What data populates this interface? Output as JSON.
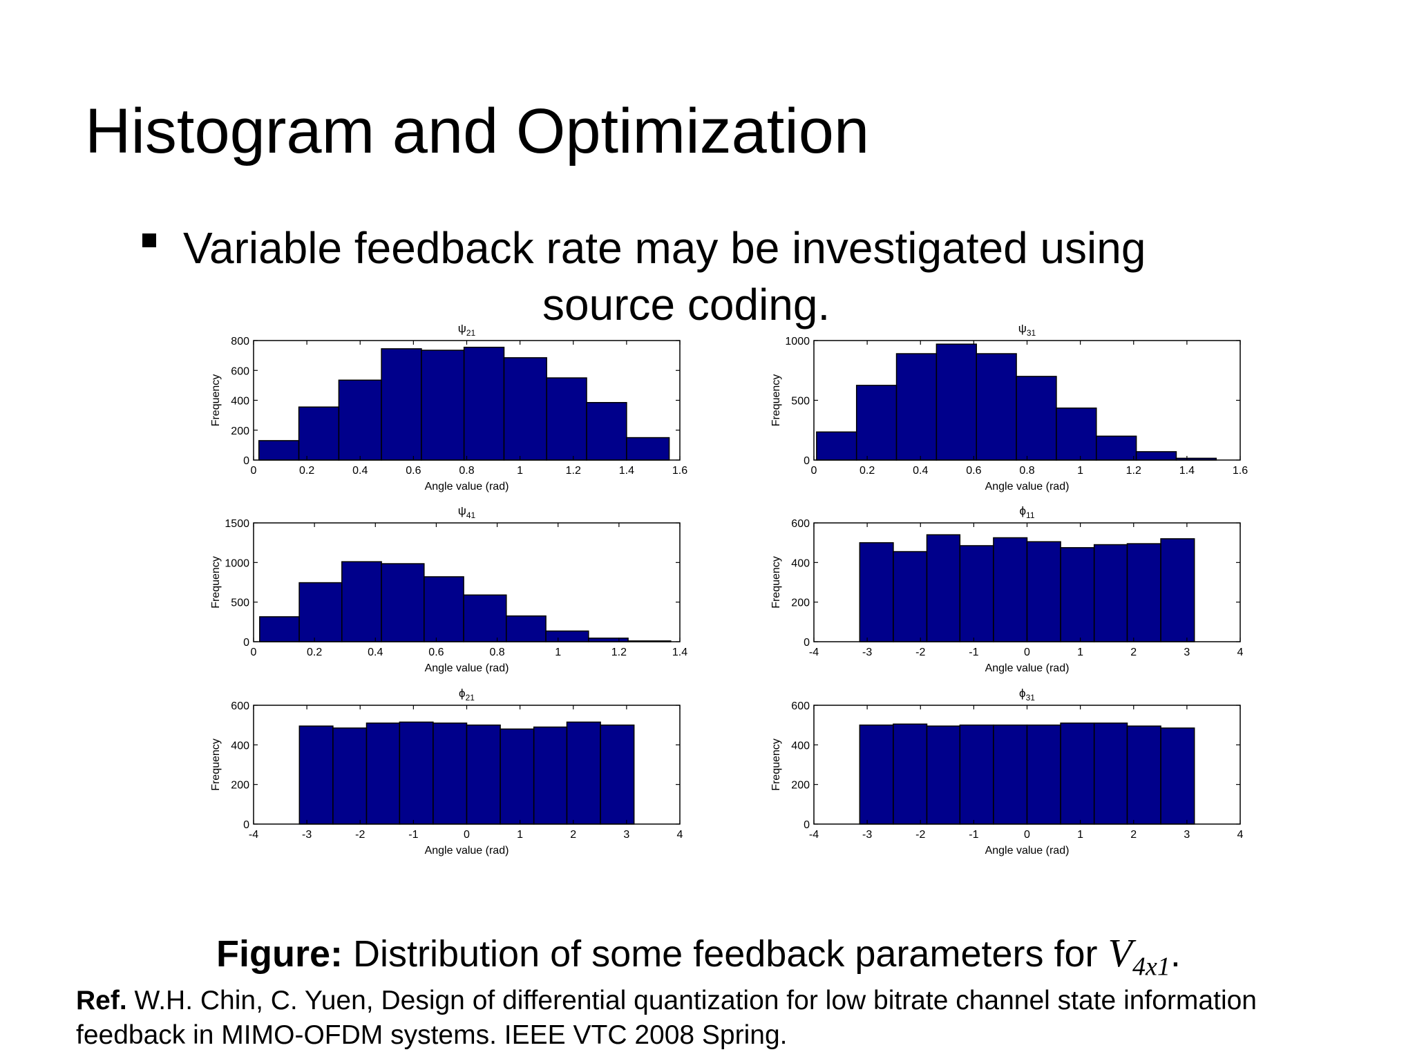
{
  "slide": {
    "title": "Histogram and Optimization",
    "bullet_line1": "Variable feedback rate may be investigated using",
    "bullet_line2": "source coding.",
    "caption_bold": "Figure:",
    "caption_text": "Distribution of some feedback parameters for",
    "caption_math_base": "V",
    "caption_math_sub": "4x1",
    "caption_end": ".",
    "ref_bold": "Ref.",
    "ref_text": "W.H. Chin, C. Yuen, Design of differential quantization for low bitrate channel state information feedback in MIMO-OFDM systems. IEEE VTC 2008 Spring."
  },
  "colors": {
    "bar_fill": "#00008B",
    "bar_edge": "#000000",
    "axis": "#000000"
  },
  "chart_data": [
    {
      "type": "bar",
      "title_sym": "ψ",
      "title_sub": "21",
      "xlabel": "Angle value (rad)",
      "ylabel": "Frequency",
      "xlim": [
        0,
        1.6
      ],
      "ylim": [
        0,
        800
      ],
      "xticks": [
        0,
        0.2,
        0.4,
        0.6,
        0.8,
        1,
        1.2,
        1.4,
        1.6
      ],
      "yticks": [
        0,
        200,
        400,
        600,
        800
      ],
      "bin_edges": [
        0.02,
        0.17,
        0.32,
        0.48,
        0.63,
        0.79,
        0.94,
        1.1,
        1.25,
        1.4,
        1.56
      ],
      "values": [
        130,
        355,
        535,
        745,
        735,
        755,
        685,
        550,
        385,
        150
      ]
    },
    {
      "type": "bar",
      "title_sym": "ψ",
      "title_sub": "31",
      "xlabel": "Angle value (rad)",
      "ylabel": "Frequency",
      "xlim": [
        0,
        1.6
      ],
      "ylim": [
        0,
        1000
      ],
      "xticks": [
        0,
        0.2,
        0.4,
        0.6,
        0.8,
        1,
        1.2,
        1.4,
        1.6
      ],
      "yticks": [
        0,
        500,
        1000
      ],
      "bin_edges": [
        0.01,
        0.16,
        0.31,
        0.46,
        0.61,
        0.76,
        0.91,
        1.06,
        1.21,
        1.36,
        1.51
      ],
      "values": [
        235,
        625,
        890,
        970,
        890,
        700,
        435,
        200,
        70,
        15
      ]
    },
    {
      "type": "bar",
      "title_sym": "ψ",
      "title_sub": "41",
      "xlabel": "Angle value (rad)",
      "ylabel": "Frequency",
      "xlim": [
        0,
        1.4
      ],
      "ylim": [
        0,
        1500
      ],
      "xticks": [
        0,
        0.2,
        0.4,
        0.6,
        0.8,
        1,
        1.2,
        1.4
      ],
      "yticks": [
        0,
        500,
        1000,
        1500
      ],
      "bin_edges": [
        0.02,
        0.15,
        0.29,
        0.42,
        0.56,
        0.69,
        0.83,
        0.96,
        1.1,
        1.23,
        1.37
      ],
      "values": [
        315,
        745,
        1010,
        985,
        820,
        590,
        325,
        135,
        45,
        10
      ]
    },
    {
      "type": "bar",
      "title_sym": "ϕ",
      "title_sub": "11",
      "xlabel": "Angle value (rad)",
      "ylabel": "Frequency",
      "xlim": [
        -4,
        4
      ],
      "ylim": [
        0,
        600
      ],
      "xticks": [
        -4,
        -3,
        -2,
        -1,
        0,
        1,
        2,
        3,
        4
      ],
      "yticks": [
        0,
        200,
        400,
        600
      ],
      "bin_edges": [
        -3.14,
        -2.51,
        -1.88,
        -1.26,
        -0.63,
        0,
        0.63,
        1.26,
        1.88,
        2.51,
        3.14
      ],
      "values": [
        500,
        455,
        540,
        485,
        525,
        505,
        475,
        490,
        495,
        520
      ]
    },
    {
      "type": "bar",
      "title_sym": "ϕ",
      "title_sub": "21",
      "xlabel": "Angle value (rad)",
      "ylabel": "Frequency",
      "xlim": [
        -4,
        4
      ],
      "ylim": [
        0,
        600
      ],
      "xticks": [
        -4,
        -3,
        -2,
        -1,
        0,
        1,
        2,
        3,
        4
      ],
      "yticks": [
        0,
        200,
        400,
        600
      ],
      "bin_edges": [
        -3.14,
        -2.51,
        -1.88,
        -1.26,
        -0.63,
        0,
        0.63,
        1.26,
        1.88,
        2.51,
        3.14
      ],
      "values": [
        495,
        485,
        510,
        515,
        510,
        500,
        480,
        490,
        515,
        500
      ]
    },
    {
      "type": "bar",
      "title_sym": "ϕ",
      "title_sub": "31",
      "xlabel": "Angle value (rad)",
      "ylabel": "Frequency",
      "xlim": [
        -4,
        4
      ],
      "ylim": [
        0,
        600
      ],
      "xticks": [
        -4,
        -3,
        -2,
        -1,
        0,
        1,
        2,
        3,
        4
      ],
      "yticks": [
        0,
        200,
        400,
        600
      ],
      "bin_edges": [
        -3.14,
        -2.51,
        -1.88,
        -1.26,
        -0.63,
        0,
        0.63,
        1.26,
        1.88,
        2.51,
        3.14
      ],
      "values": [
        500,
        505,
        495,
        500,
        500,
        500,
        510,
        510,
        495,
        485
      ]
    }
  ]
}
